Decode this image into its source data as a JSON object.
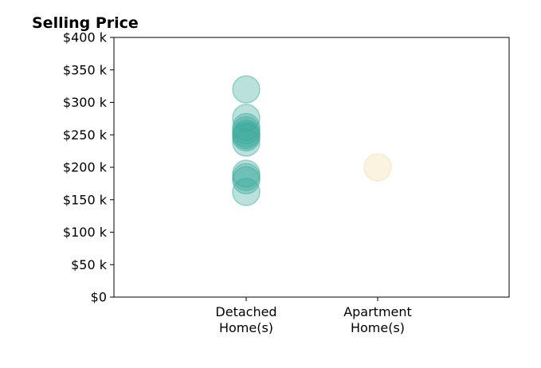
{
  "chart_data": {
    "type": "scatter",
    "title": "Selling Price",
    "xlabel": "",
    "ylabel": "",
    "categories": [
      [
        "Detached",
        "Home(s)"
      ],
      [
        "Apartment",
        "Home(s)"
      ]
    ],
    "ylim": [
      0,
      400000
    ],
    "y_ticks": [
      {
        "value": 0,
        "label": "$0"
      },
      {
        "value": 50000,
        "label": "$50 k"
      },
      {
        "value": 100000,
        "label": "$100 k"
      },
      {
        "value": 150000,
        "label": "$150 k"
      },
      {
        "value": 200000,
        "label": "$200 k"
      },
      {
        "value": 250000,
        "label": "$250 k"
      },
      {
        "value": 300000,
        "label": "$300 k"
      },
      {
        "value": 350000,
        "label": "$350 k"
      },
      {
        "value": 400000,
        "label": "$400 k"
      }
    ],
    "grid": false,
    "series": [
      {
        "category_index": 0,
        "color": "#3aa99b",
        "values": [
          320000,
          276000,
          262000,
          257000,
          252000,
          249000,
          246000,
          238000,
          190000,
          185000,
          180000,
          162000
        ]
      },
      {
        "category_index": 1,
        "color": "#f5d9a6",
        "values": [
          200000
        ]
      }
    ],
    "marker_opacity": 0.35
  }
}
